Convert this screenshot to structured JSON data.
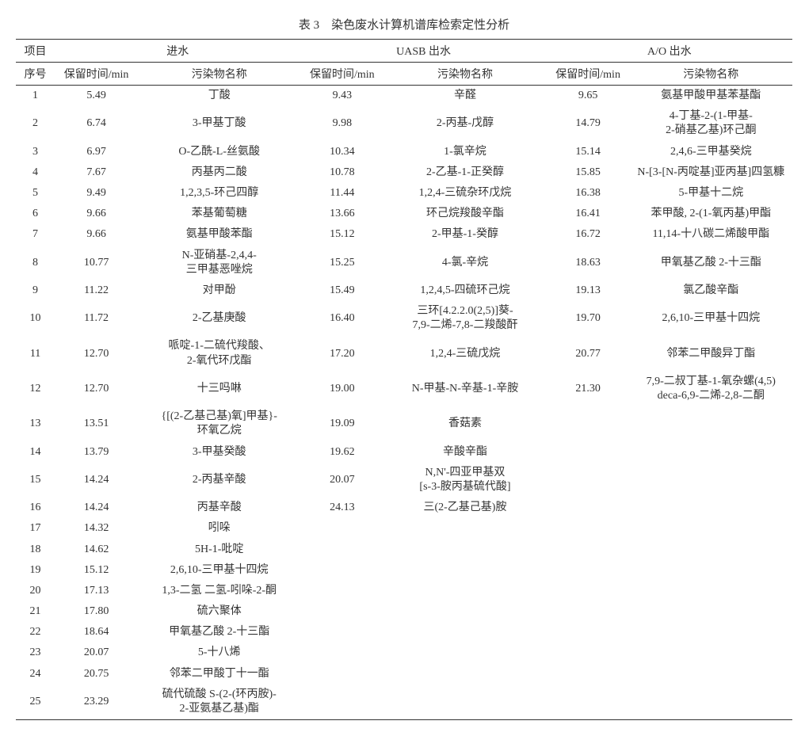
{
  "title": "表 3　染色废水计算机谱库检索定性分析",
  "header1": {
    "c1": "项目",
    "c2": "进水",
    "c3": "UASB 出水",
    "c4": "A/O 出水"
  },
  "header2": {
    "seq": "序号",
    "rt": "保留时间/min",
    "name": "污染物名称"
  },
  "rows": [
    {
      "seq": "1",
      "rt1": "5.49",
      "n1": "丁酸",
      "rt2": "9.43",
      "n2": "辛醛",
      "rt3": "9.65",
      "n3": "氨基甲酸甲基苯基酯"
    },
    {
      "seq": "2",
      "rt1": "6.74",
      "n1": "3-甲基丁酸",
      "rt2": "9.98",
      "n2": "2-丙基-戊醇",
      "rt3": "14.79",
      "n3": "4-丁基-2-(1-甲基-\n2-硝基乙基)环己酮"
    },
    {
      "seq": "3",
      "rt1": "6.97",
      "n1": "O-乙酰-L-丝氨酸",
      "rt2": "10.34",
      "n2": "1-氯辛烷",
      "rt3": "15.14",
      "n3": "2,4,6-三甲基癸烷"
    },
    {
      "seq": "4",
      "rt1": "7.67",
      "n1": "丙基丙二酸",
      "rt2": "10.78",
      "n2": "2-乙基-1-正癸醇",
      "rt3": "15.85",
      "n3": "N-[3-[N-丙啶基]亚丙基]四氢糠"
    },
    {
      "seq": "5",
      "rt1": "9.49",
      "n1": "1,2,3,5-环己四醇",
      "rt2": "11.44",
      "n2": "1,2,4-三硫杂环戊烷",
      "rt3": "16.38",
      "n3": "5-甲基十二烷"
    },
    {
      "seq": "6",
      "rt1": "9.66",
      "n1": "苯基葡萄糖",
      "rt2": "13.66",
      "n2": "环己烷羧酸辛酯",
      "rt3": "16.41",
      "n3": "苯甲酸, 2-(1-氧丙基)甲酯"
    },
    {
      "seq": "7",
      "rt1": "9.66",
      "n1": "氨基甲酸苯酯",
      "rt2": "15.12",
      "n2": "2-甲基-1-癸醇",
      "rt3": "16.72",
      "n3": "11,14-十八碳二烯酸甲酯"
    },
    {
      "seq": "8",
      "rt1": "10.77",
      "n1": "N-亚硝基-2,4,4-\n三甲基恶唑烷",
      "rt2": "15.25",
      "n2": "4-氯-辛烷",
      "rt3": "18.63",
      "n3": "甲氧基乙酸 2-十三酯"
    },
    {
      "seq": "9",
      "rt1": "11.22",
      "n1": "对甲酚",
      "rt2": "15.49",
      "n2": "1,2,4,5-四硫环己烷",
      "rt3": "19.13",
      "n3": "氯乙酸辛酯"
    },
    {
      "seq": "10",
      "rt1": "11.72",
      "n1": "2-乙基庚酸",
      "rt2": "16.40",
      "n2": "三环[4.2.2.0(2,5)]葵-\n7,9-二烯-7,8-二羧酸酐",
      "rt3": "19.70",
      "n3": "2,6,10-三甲基十四烷"
    },
    {
      "seq": "11",
      "rt1": "12.70",
      "n1": "哌啶-1-二硫代羧酸、\n2-氧代环戊酯",
      "rt2": "17.20",
      "n2": "1,2,4-三硫戊烷",
      "rt3": "20.77",
      "n3": "邻苯二甲酸异丁酯"
    },
    {
      "seq": "12",
      "rt1": "12.70",
      "n1": "十三吗啉",
      "rt2": "19.00",
      "n2": "N-甲基-N-辛基-1-辛胺",
      "rt3": "21.30",
      "n3": "7,9-二叔丁基-1-氧杂螺(4,5)\ndeca-6,9-二烯-2,8-二酮"
    },
    {
      "seq": "13",
      "rt1": "13.51",
      "n1": "{[(2-乙基己基)氧]甲基}-\n环氧乙烷",
      "rt2": "19.09",
      "n2": "香菇素",
      "rt3": "",
      "n3": ""
    },
    {
      "seq": "14",
      "rt1": "13.79",
      "n1": "3-甲基癸酸",
      "rt2": "19.62",
      "n2": "辛酸辛酯",
      "rt3": "",
      "n3": ""
    },
    {
      "seq": "15",
      "rt1": "14.24",
      "n1": "2-丙基辛酸",
      "rt2": "20.07",
      "n2": "N,N'-四亚甲基双\n[s-3-胺丙基硫代酸]",
      "rt3": "",
      "n3": ""
    },
    {
      "seq": "16",
      "rt1": "14.24",
      "n1": "丙基辛酸",
      "rt2": "24.13",
      "n2": "三(2-乙基己基)胺",
      "rt3": "",
      "n3": ""
    },
    {
      "seq": "17",
      "rt1": "14.32",
      "n1": "吲哚",
      "rt2": "",
      "n2": "",
      "rt3": "",
      "n3": ""
    },
    {
      "seq": "18",
      "rt1": "14.62",
      "n1": "5H-1-吡啶",
      "rt2": "",
      "n2": "",
      "rt3": "",
      "n3": ""
    },
    {
      "seq": "19",
      "rt1": "15.12",
      "n1": "2,6,10-三甲基十四烷",
      "rt2": "",
      "n2": "",
      "rt3": "",
      "n3": ""
    },
    {
      "seq": "20",
      "rt1": "17.13",
      "n1": "1,3-二氢 二氢-吲哚-2-酮",
      "rt2": "",
      "n2": "",
      "rt3": "",
      "n3": ""
    },
    {
      "seq": "21",
      "rt1": "17.80",
      "n1": "硫六聚体",
      "rt2": "",
      "n2": "",
      "rt3": "",
      "n3": ""
    },
    {
      "seq": "22",
      "rt1": "18.64",
      "n1": "甲氧基乙酸 2-十三酯",
      "rt2": "",
      "n2": "",
      "rt3": "",
      "n3": ""
    },
    {
      "seq": "23",
      "rt1": "20.07",
      "n1": "5-十八烯",
      "rt2": "",
      "n2": "",
      "rt3": "",
      "n3": ""
    },
    {
      "seq": "24",
      "rt1": "20.75",
      "n1": "邻苯二甲酸丁十一酯",
      "rt2": "",
      "n2": "",
      "rt3": "",
      "n3": ""
    },
    {
      "seq": "25",
      "rt1": "23.29",
      "n1": "硫代硫酸 S-(2-(环丙胺)-\n2-亚氨基乙基)酯",
      "rt2": "",
      "n2": "",
      "rt3": "",
      "n3": ""
    }
  ]
}
